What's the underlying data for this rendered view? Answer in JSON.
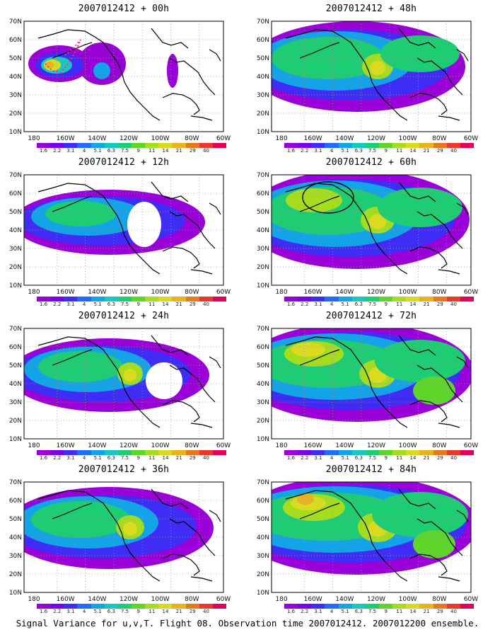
{
  "caption": "Signal Variance for u,v,T. Flight 08. Observation time 2007012412. 2007012200 ensemble.",
  "lat_labels": [
    "70N",
    "60N",
    "50N",
    "40N",
    "30N",
    "20N",
    "10N"
  ],
  "lon_labels": [
    "180",
    "160W",
    "140W",
    "120W",
    "100W",
    "80W",
    "60W"
  ],
  "colorbar": {
    "labels": [
      "1.6",
      "2.2",
      "3.1",
      "4",
      "5.1",
      "6.3",
      "7.5",
      "9",
      "11",
      "14",
      "21",
      "29",
      "40"
    ],
    "colors": [
      "#9a00d8",
      "#7c00e6",
      "#3f2cf5",
      "#1f6cf5",
      "#14a3e6",
      "#16c9c0",
      "#1ecc74",
      "#5fd52c",
      "#a6dc1e",
      "#dadb1f",
      "#eab21e",
      "#e9781d",
      "#e83a2a",
      "#e6005e"
    ]
  },
  "colors": {
    "land_outline": "#000000",
    "grid": "#999999",
    "background": "#ffffff",
    "track": "#ff2a8a"
  },
  "panels": [
    {
      "id": "p00",
      "title": "2007012412 + 00h",
      "intensity": 0
    },
    {
      "id": "p48",
      "title": "2007012412 + 48h",
      "intensity": 4
    },
    {
      "id": "p12",
      "title": "2007012412 + 12h",
      "intensity": 1
    },
    {
      "id": "p60",
      "title": "2007012412 + 60h",
      "intensity": 5
    },
    {
      "id": "p24",
      "title": "2007012412 + 24h",
      "intensity": 2
    },
    {
      "id": "p72",
      "title": "2007012412 + 72h",
      "intensity": 6
    },
    {
      "id": "p36",
      "title": "2007012412 + 36h",
      "intensity": 3
    },
    {
      "id": "p84",
      "title": "2007012412 + 84h",
      "intensity": 7
    }
  ]
}
